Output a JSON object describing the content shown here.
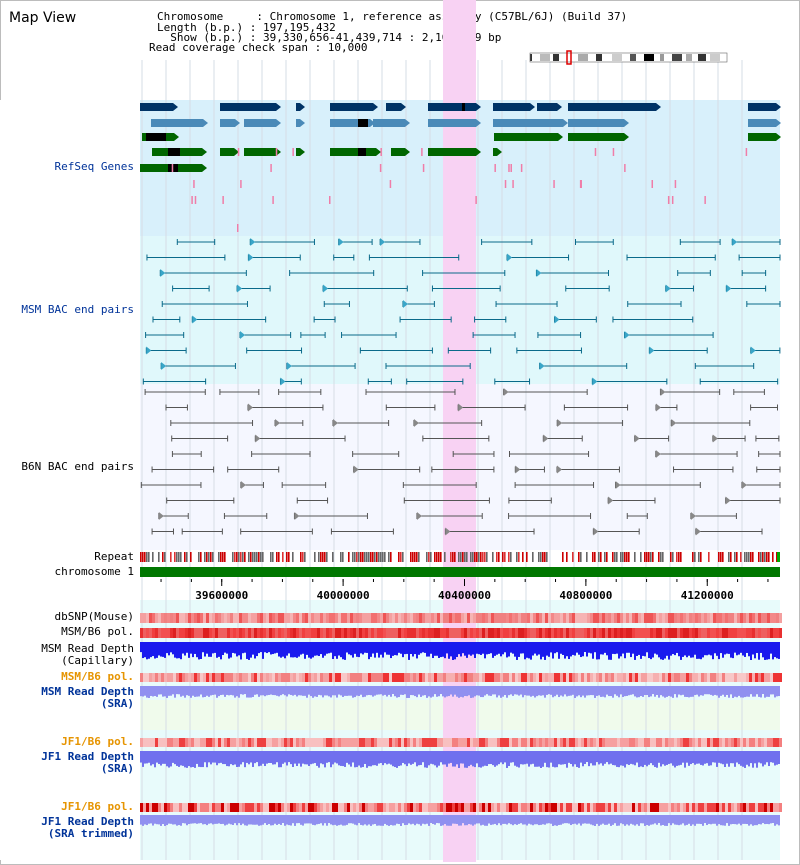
{
  "view_title": "Map View",
  "info": {
    "chromosome": "Chromosome     : Chromosome 1, reference assembly (C57BL/6J) (Build 37)",
    "length": "Length (b.p.) : 197,195,432",
    "show": "  Show (b.p.) : 39,330,656-41,439,714 : 2,109,059 bp",
    "coverage": "Read coverage check span : 10,000"
  },
  "tracks": {
    "refseq": "RefSeq Genes",
    "msm_bac": "MSM BAC end pairs",
    "b6n_bac": "B6N BAC end pairs",
    "repeat": "Repeat",
    "chromosome": "chromosome 1",
    "dbsnp": "dbSNP(Mouse)",
    "msm_b6_pol": "MSM/B6 pol.",
    "msm_depth_cap_1": "MSM Read Depth",
    "msm_depth_cap_2": "(Capillary)",
    "msm_b6_pol_2": "MSM/B6 pol.",
    "msm_depth_sra_1": "MSM Read Depth",
    "msm_depth_sra_2": "(SRA)",
    "jf1_b6_pol": "JF1/B6 pol.",
    "jf1_depth_sra_1": "JF1 Read Depth",
    "jf1_depth_sra_2": "(SRA)",
    "jf1_b6_pol_2": "JF1/B6 pol.",
    "jf1_depth_trim_1": "JF1 Read Depth",
    "jf1_depth_trim_2": "(SRA trimmed)"
  },
  "axis": {
    "ticks": [
      "39600000",
      "40000000",
      "40400000",
      "40800000",
      "41200000"
    ],
    "tick_values": [
      39600000,
      40000000,
      40400000,
      40800000,
      41200000
    ],
    "start": 39330656,
    "end": 41439714
  },
  "colors": {
    "refseq_bg": "#d8f0fb",
    "msm_bg": "#e0f8fb",
    "b6n_bg": "#f5f7ff",
    "highlight": "#f8d8f4",
    "gene_dark": "#003366",
    "gene_mid": "#4a8ab8",
    "gene_green": "#006600",
    "chrom_green": "#007700"
  }
}
